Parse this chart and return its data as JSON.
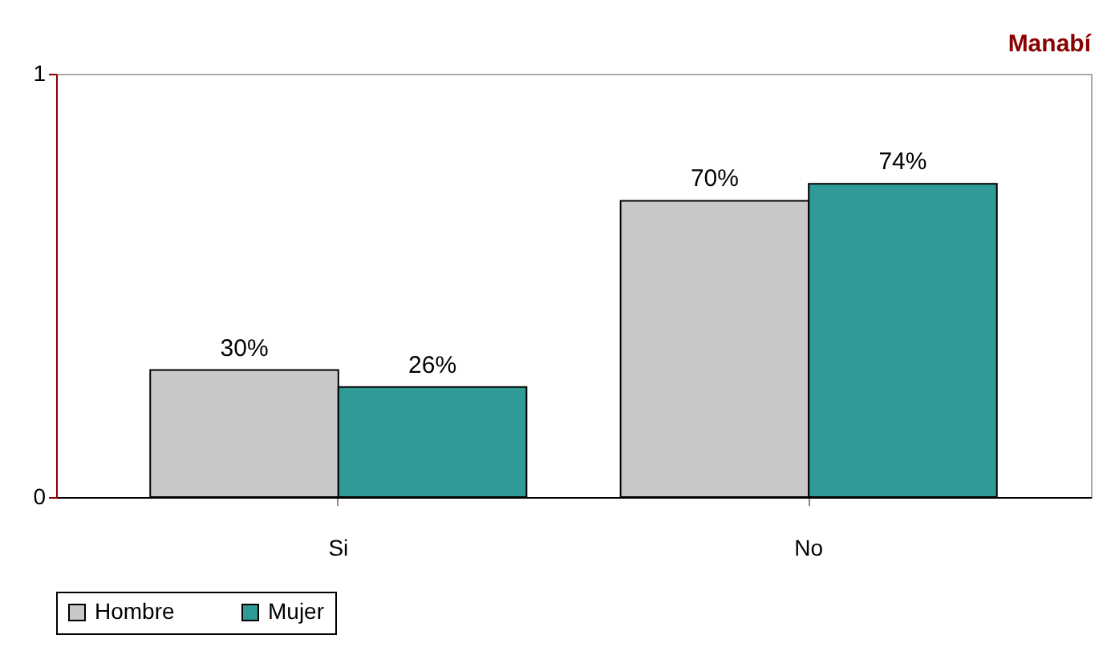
{
  "chart_data": {
    "type": "bar",
    "title": "Manabí",
    "categories": [
      "Si",
      "No"
    ],
    "series": [
      {
        "name": "Hombre",
        "color": "#c8c8c8",
        "values": [
          0.3,
          0.7
        ],
        "value_labels": [
          "30%",
          "70%"
        ]
      },
      {
        "name": "Mujer",
        "color": "#2f9a96",
        "values": [
          0.26,
          0.74
        ],
        "value_labels": [
          "26%",
          "74%"
        ]
      }
    ],
    "ylim": [
      0,
      1
    ],
    "yticks": [
      0,
      1
    ],
    "grid": false,
    "legend": "bottom"
  }
}
